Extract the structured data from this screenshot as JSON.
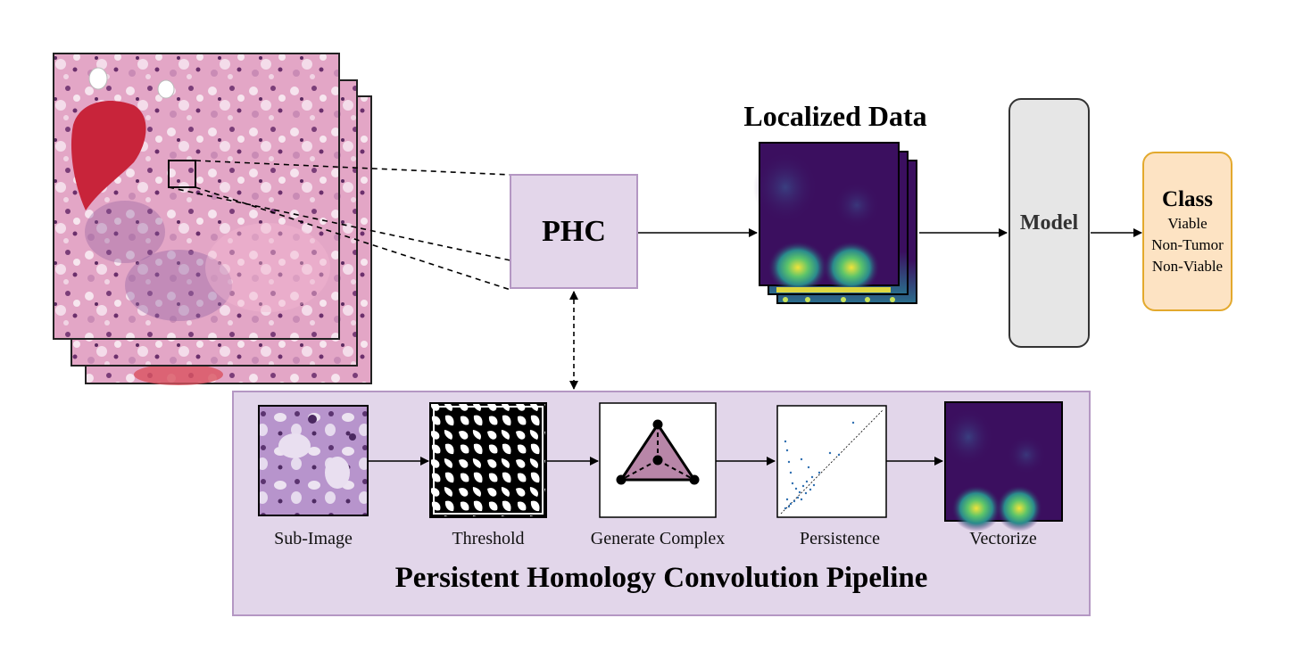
{
  "diagram": {
    "phc_label": "PHC",
    "localized_title": "Localized Data",
    "model_label": "Model",
    "class_box": {
      "title": "Class",
      "items": [
        "Viable",
        "Non-Tumor",
        "Non-Viable"
      ]
    },
    "pipeline": {
      "title": "Persistent Homology Convolution Pipeline",
      "steps": [
        "Sub-Image",
        "Threshold",
        "Generate Complex",
        "Persistence",
        "Vectorize"
      ]
    },
    "colors": {
      "phc_fill": "#e3d6ea",
      "pipeline_fill": "#e2d6ea",
      "purple_border": "#b497c3",
      "model_fill": "#e6e6e6",
      "class_fill": "#fde3c3",
      "class_border": "#e3a92d",
      "heatmap_dark": "#3b0f5f",
      "heatmap_hot": "#f2e43a",
      "tissue_pink": "#e3a6c6",
      "tissue_red": "#c8243a",
      "simplex_fill": "#b886a8"
    }
  }
}
